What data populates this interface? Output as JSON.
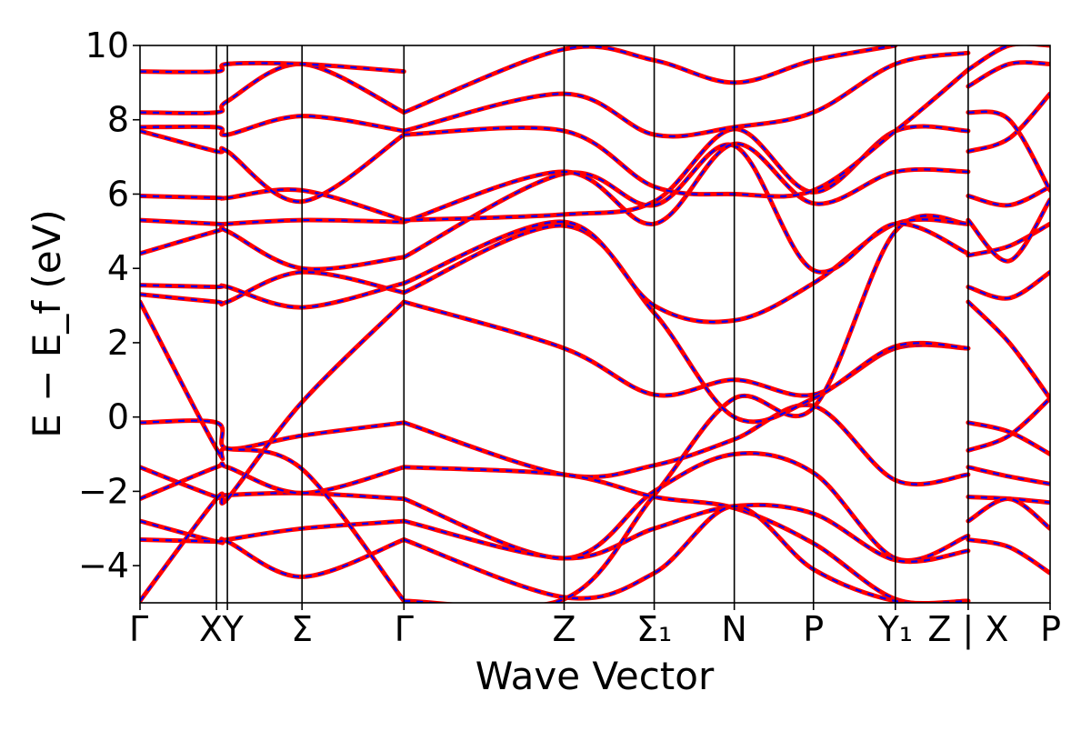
{
  "chart_data": {
    "type": "line",
    "title": "",
    "xlabel": "Wave Vector",
    "ylabel": "E − E_f (eV)",
    "ylim": [
      -5,
      10
    ],
    "yticks": [
      -4,
      -2,
      0,
      2,
      4,
      6,
      8,
      10
    ],
    "ytick_labels": [
      "−4",
      "−2",
      "0",
      "2",
      "4",
      "6",
      "8",
      "10"
    ],
    "x_range": [
      0,
      1
    ],
    "kpoints": [
      {
        "pos": 0.0,
        "label": "Γ"
      },
      {
        "pos": 0.084,
        "label": "X"
      },
      {
        "pos": 0.096,
        "label": "Y"
      },
      {
        "pos": 0.178,
        "label": "Σ"
      },
      {
        "pos": 0.29,
        "label": "Γ"
      },
      {
        "pos": 0.466,
        "label": "Z"
      },
      {
        "pos": 0.565,
        "label": "Σ₁"
      },
      {
        "pos": 0.653,
        "label": "N"
      },
      {
        "pos": 0.74,
        "label": "P"
      },
      {
        "pos": 0.83,
        "label": "Y₁"
      },
      {
        "pos": 0.91,
        "label": "Z | X"
      },
      {
        "pos": 1.0,
        "label": "P"
      }
    ],
    "grid": false,
    "colors": {
      "primary": "#ff0000",
      "secondary": "#0000ff"
    },
    "series": [
      {
        "x": [
          0,
          0.084,
          0.096,
          0.178,
          0.29
        ],
        "y": [
          -0.15,
          -0.15,
          -0.85,
          -0.5,
          -0.15
        ]
      },
      {
        "x": [
          0.29,
          0.466,
          0.565,
          0.653,
          0.74,
          0.83,
          0.91
        ],
        "y": [
          -0.15,
          -1.55,
          -1.3,
          -0.6,
          0.3,
          -1.7,
          -1.55
        ]
      },
      {
        "x": [
          0,
          0.084,
          0.096,
          0.178,
          0.29
        ],
        "y": [
          -1.35,
          -2.15,
          -2.1,
          -2.05,
          -2.2
        ]
      },
      {
        "x": [
          0.29,
          0.466,
          0.565,
          0.653,
          0.74,
          0.83,
          0.91
        ],
        "y": [
          -2.2,
          -3.8,
          -2.0,
          -1.0,
          -1.5,
          -3.8,
          -3.2
        ]
      },
      {
        "x": [
          0,
          0.084,
          0.096,
          0.178,
          0.29
        ],
        "y": [
          -2.2,
          -1.35,
          -1.35,
          -2.05,
          -1.35
        ]
      },
      {
        "x": [
          0.29,
          0.466,
          0.565,
          0.653,
          0.74,
          0.83,
          0.91
        ],
        "y": [
          -1.35,
          -1.55,
          -2.15,
          -2.45,
          -3.4,
          -4.9,
          -4.95
        ]
      },
      {
        "x": [
          0,
          0.084,
          0.096,
          0.178,
          0.29
        ],
        "y": [
          -2.8,
          -3.35,
          -3.3,
          -3.0,
          -2.8
        ]
      },
      {
        "x": [
          0.29,
          0.466,
          0.565,
          0.653,
          0.74,
          0.83,
          0.91
        ],
        "y": [
          -2.8,
          -3.8,
          -3.0,
          -2.4,
          -2.6,
          -3.85,
          -3.6
        ]
      },
      {
        "x": [
          0,
          0.084,
          0.096,
          0.178,
          0.29
        ],
        "y": [
          -3.3,
          -3.35,
          -3.35,
          -4.3,
          -3.3
        ]
      },
      {
        "x": [
          0.29,
          0.466,
          0.565,
          0.653,
          0.74,
          0.83,
          0.91
        ],
        "y": [
          -3.3,
          -4.85,
          -4.2,
          -2.4,
          -4.1,
          -4.95,
          -4.95
        ]
      },
      {
        "x": [
          0,
          0.084,
          0.096,
          0.178,
          0.29
        ],
        "y": [
          -4.95,
          -2.2,
          -2.2,
          0.4,
          3.1
        ]
      },
      {
        "x": [
          0.29,
          0.466,
          0.565,
          0.653,
          0.74,
          0.83,
          0.91
        ],
        "y": [
          3.1,
          1.85,
          0.6,
          1.0,
          0.6,
          1.85,
          1.85
        ]
      },
      {
        "x": [
          0,
          0.084,
          0.096,
          0.178,
          0.29
        ],
        "y": [
          3.1,
          -0.85,
          -0.85,
          -1.4,
          -4.95
        ]
      },
      {
        "x": [
          0.29,
          0.466,
          0.565,
          0.653,
          0.74,
          0.83,
          0.91
        ],
        "y": [
          -4.95,
          -4.9,
          -2.1,
          0.5,
          0.25,
          5.0,
          5.2
        ]
      },
      {
        "x": [
          0,
          0.084,
          0.096,
          0.178,
          0.29
        ],
        "y": [
          3.3,
          3.1,
          3.1,
          3.9,
          3.35
        ]
      },
      {
        "x": [
          0.29,
          0.466,
          0.565,
          0.653,
          0.74,
          0.83,
          0.91
        ],
        "y": [
          3.35,
          5.15,
          2.8,
          0.0,
          0.5,
          1.9,
          1.85
        ]
      },
      {
        "x": [
          0,
          0.084,
          0.096,
          0.178,
          0.29
        ],
        "y": [
          3.55,
          3.5,
          3.5,
          2.95,
          3.6
        ]
      },
      {
        "x": [
          0.29,
          0.466,
          0.565,
          0.653,
          0.74,
          0.83,
          0.91
        ],
        "y": [
          3.6,
          5.25,
          3.0,
          2.6,
          3.6,
          5.2,
          5.2
        ]
      },
      {
        "x": [
          0,
          0.084,
          0.096,
          0.178,
          0.29
        ],
        "y": [
          4.4,
          5.0,
          5.0,
          4.0,
          4.3
        ]
      },
      {
        "x": [
          0.29,
          0.466,
          0.565,
          0.653,
          0.74,
          0.83,
          0.91
        ],
        "y": [
          4.3,
          6.55,
          5.7,
          7.3,
          3.95,
          5.2,
          4.4
        ]
      },
      {
        "x": [
          0,
          0.084,
          0.096,
          0.178,
          0.29
        ],
        "y": [
          5.3,
          5.2,
          5.2,
          5.3,
          5.25
        ]
      },
      {
        "x": [
          0.29,
          0.466,
          0.565,
          0.653,
          0.74,
          0.83,
          0.91
        ],
        "y": [
          5.25,
          6.6,
          5.2,
          7.35,
          5.75,
          6.6,
          6.6
        ]
      },
      {
        "x": [
          0,
          0.084,
          0.096,
          0.178,
          0.29
        ],
        "y": [
          5.95,
          5.9,
          5.9,
          6.1,
          5.3
        ]
      },
      {
        "x": [
          0.29,
          0.466,
          0.565,
          0.653,
          0.74,
          0.83,
          0.91
        ],
        "y": [
          5.3,
          5.45,
          5.8,
          7.75,
          6.05,
          7.7,
          7.7
        ]
      },
      {
        "x": [
          0,
          0.084,
          0.096,
          0.178,
          0.29
        ],
        "y": [
          7.7,
          7.15,
          7.15,
          5.8,
          7.6
        ]
      },
      {
        "x": [
          0.29,
          0.466,
          0.565,
          0.653,
          0.74,
          0.83,
          0.91
        ],
        "y": [
          7.6,
          7.7,
          6.2,
          6.0,
          6.1,
          7.7,
          9.35
        ]
      },
      {
        "x": [
          0,
          0.084,
          0.096,
          0.178,
          0.29
        ],
        "y": [
          7.8,
          7.8,
          7.6,
          8.1,
          7.7
        ]
      },
      {
        "x": [
          0.29,
          0.466,
          0.565,
          0.653,
          0.74,
          0.83,
          0.91
        ],
        "y": [
          7.7,
          8.7,
          7.6,
          7.8,
          8.2,
          9.5,
          9.8
        ]
      },
      {
        "x": [
          0,
          0.084,
          0.096,
          0.178,
          0.29
        ],
        "y": [
          8.2,
          8.2,
          8.5,
          9.5,
          8.2
        ]
      },
      {
        "x": [
          0.29,
          0.466,
          0.565,
          0.653,
          0.74,
          0.83
        ],
        "y": [
          8.2,
          9.9,
          9.6,
          9.0,
          9.6,
          10.0
        ]
      },
      {
        "x": [
          0,
          0.084,
          0.096,
          0.178,
          0.29
        ],
        "y": [
          9.3,
          9.3,
          9.5,
          9.5,
          9.3
        ]
      },
      {
        "x": [
          0.91,
          0.955,
          1.0
        ],
        "y": [
          -0.15,
          -0.4,
          -1.0
        ]
      },
      {
        "x": [
          0.91,
          0.955,
          1.0
        ],
        "y": [
          -0.9,
          -0.5,
          0.5
        ]
      },
      {
        "x": [
          0.91,
          0.955,
          1.0
        ],
        "y": [
          -1.35,
          -1.6,
          -1.8
        ]
      },
      {
        "x": [
          0.91,
          0.955,
          1.0
        ],
        "y": [
          -2.15,
          -2.2,
          -2.3
        ]
      },
      {
        "x": [
          0.91,
          0.955,
          1.0
        ],
        "y": [
          -2.8,
          -2.2,
          -3.0
        ]
      },
      {
        "x": [
          0.91,
          0.955,
          1.0
        ],
        "y": [
          -3.3,
          -3.5,
          -4.2
        ]
      },
      {
        "x": [
          0.91,
          0.955,
          1.0
        ],
        "y": [
          3.1,
          2.0,
          0.5
        ]
      },
      {
        "x": [
          0.91,
          0.955,
          1.0
        ],
        "y": [
          3.5,
          3.2,
          3.9
        ]
      },
      {
        "x": [
          0.91,
          0.955,
          1.0
        ],
        "y": [
          4.35,
          4.6,
          5.2
        ]
      },
      {
        "x": [
          0.91,
          0.955,
          1.0
        ],
        "y": [
          5.3,
          4.2,
          5.85
        ]
      },
      {
        "x": [
          0.91,
          0.955,
          1.0
        ],
        "y": [
          5.95,
          5.7,
          6.2
        ]
      },
      {
        "x": [
          0.91,
          0.955,
          1.0
        ],
        "y": [
          7.15,
          7.5,
          8.7
        ]
      },
      {
        "x": [
          0.91,
          0.955,
          1.0
        ],
        "y": [
          8.2,
          8.0,
          6.1
        ]
      },
      {
        "x": [
          0.91,
          0.955,
          1.0
        ],
        "y": [
          8.9,
          9.5,
          9.5
        ]
      },
      {
        "x": [
          0.91,
          0.955,
          1.0
        ],
        "y": [
          9.35,
          10.0,
          10.0
        ]
      }
    ]
  }
}
